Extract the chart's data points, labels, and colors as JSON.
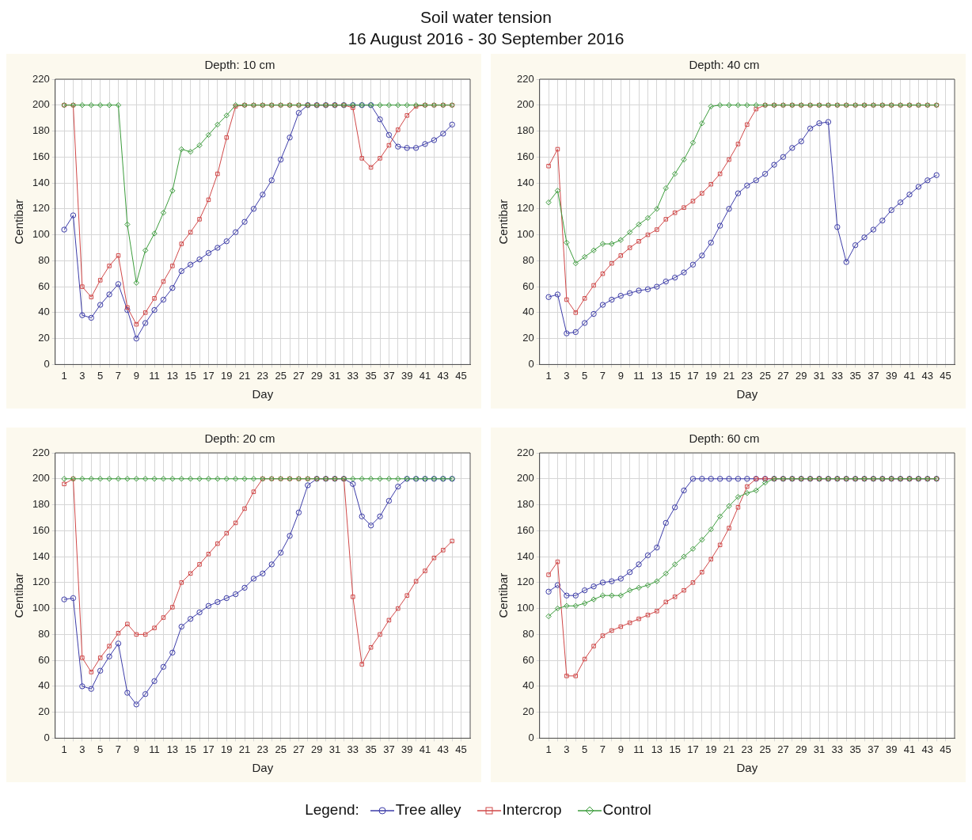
{
  "chart_data": [
    {
      "type": "other",
      "title": "Soil water tension",
      "subtitle": "16 August 2016 - 30 September 2016"
    },
    {
      "type": "line",
      "title": "Depth: 10 cm",
      "xlabel": "Day",
      "ylabel": "Centibar",
      "grid": true,
      "xlim": [
        0,
        46
      ],
      "ylim": [
        0,
        220
      ],
      "legend": "bottom",
      "legend_title": "Legend:",
      "xticks": [
        1,
        {
          "value": 2,
          "label": null
        },
        3,
        {
          "value": 4,
          "label": null
        },
        5,
        {
          "value": 6,
          "label": null
        },
        7,
        {
          "value": 8,
          "label": null
        },
        9,
        {
          "value": 10,
          "label": null
        },
        11,
        {
          "value": 12,
          "label": null
        },
        13,
        {
          "value": 14,
          "label": null
        },
        15,
        {
          "value": 16,
          "label": null
        },
        17,
        {
          "value": 18,
          "label": null
        },
        19,
        {
          "value": 20,
          "label": null
        },
        21,
        {
          "value": 22,
          "label": null
        },
        23,
        {
          "value": 24,
          "label": null
        },
        25,
        {
          "value": 26,
          "label": null
        },
        27,
        {
          "value": 28,
          "label": null
        },
        29,
        {
          "value": 30,
          "label": null
        },
        31,
        {
          "value": 32,
          "label": null
        },
        33,
        {
          "value": 34,
          "label": null
        },
        35,
        {
          "value": 36,
          "label": null
        },
        37,
        {
          "value": 38,
          "label": null
        },
        39,
        {
          "value": 40,
          "label": null
        },
        41,
        {
          "value": 42,
          "label": null
        },
        43,
        {
          "value": 44,
          "label": null
        },
        45
      ],
      "yticks": [
        0,
        20,
        40,
        60,
        80,
        100,
        120,
        140,
        160,
        180,
        200,
        220
      ],
      "x": [
        1,
        2,
        3,
        4,
        5,
        6,
        7,
        8,
        9,
        10,
        11,
        12,
        13,
        14,
        15,
        16,
        17,
        18,
        19,
        20,
        21,
        22,
        23,
        24,
        25,
        26,
        27,
        28,
        29,
        30,
        31,
        32,
        33,
        34,
        35,
        36,
        37,
        38,
        39,
        40,
        41,
        42,
        43,
        44
      ],
      "series": [
        {
          "name": "Tree alley",
          "color": "#3c3ca8",
          "marker": "circle",
          "values": [
            104,
            115,
            38,
            36,
            46,
            54,
            62,
            42,
            20,
            32,
            42,
            50,
            59,
            72,
            77,
            81,
            86,
            90,
            95,
            102,
            110,
            120,
            131,
            142,
            158,
            175,
            194,
            200,
            200,
            200,
            200,
            200,
            200,
            200,
            200,
            189,
            177,
            168,
            167,
            167,
            170,
            173,
            178,
            185
          ]
        },
        {
          "name": "Intercrop",
          "color": "#d04848",
          "marker": "square",
          "values": [
            200,
            200,
            60,
            52,
            65,
            76,
            84,
            44,
            31,
            40,
            51,
            64,
            76,
            93,
            102,
            112,
            127,
            147,
            175,
            199,
            200,
            200,
            200,
            200,
            200,
            200,
            200,
            200,
            200,
            200,
            200,
            200,
            198,
            159,
            152,
            159,
            169,
            181,
            192,
            199,
            200,
            200,
            200,
            200
          ]
        },
        {
          "name": "Control",
          "color": "#3c9c3c",
          "marker": "diamond",
          "values": [
            200,
            200,
            200,
            200,
            200,
            200,
            200,
            108,
            63,
            88,
            101,
            117,
            134,
            166,
            164,
            169,
            177,
            185,
            192,
            200,
            200,
            200,
            200,
            200,
            200,
            200,
            200,
            200,
            200,
            200,
            200,
            200,
            200,
            200,
            200,
            200,
            200,
            200,
            200,
            200,
            200,
            200,
            200,
            200
          ]
        }
      ]
    },
    {
      "type": "line",
      "title": "Depth: 40 cm",
      "xlabel": "Day",
      "ylabel": "Centibar",
      "grid": true,
      "xlim": [
        0,
        46
      ],
      "ylim": [
        0,
        220
      ],
      "xticks": [
        1,
        {
          "value": 2,
          "label": null
        },
        3,
        {
          "value": 4,
          "label": null
        },
        5,
        {
          "value": 6,
          "label": null
        },
        7,
        {
          "value": 8,
          "label": null
        },
        9,
        {
          "value": 10,
          "label": null
        },
        11,
        {
          "value": 12,
          "label": null
        },
        13,
        {
          "value": 14,
          "label": null
        },
        15,
        {
          "value": 16,
          "label": null
        },
        17,
        {
          "value": 18,
          "label": null
        },
        19,
        {
          "value": 20,
          "label": null
        },
        21,
        {
          "value": 22,
          "label": null
        },
        23,
        {
          "value": 24,
          "label": null
        },
        25,
        {
          "value": 26,
          "label": null
        },
        27,
        {
          "value": 28,
          "label": null
        },
        29,
        {
          "value": 30,
          "label": null
        },
        31,
        {
          "value": 32,
          "label": null
        },
        33,
        {
          "value": 34,
          "label": null
        },
        35,
        {
          "value": 36,
          "label": null
        },
        37,
        {
          "value": 38,
          "label": null
        },
        39,
        {
          "value": 40,
          "label": null
        },
        41,
        {
          "value": 42,
          "label": null
        },
        43,
        {
          "value": 44,
          "label": null
        },
        45
      ],
      "yticks": [
        0,
        20,
        40,
        60,
        80,
        100,
        120,
        140,
        160,
        180,
        200,
        220
      ],
      "x": [
        1,
        2,
        3,
        4,
        5,
        6,
        7,
        8,
        9,
        10,
        11,
        12,
        13,
        14,
        15,
        16,
        17,
        18,
        19,
        20,
        21,
        22,
        23,
        24,
        25,
        26,
        27,
        28,
        29,
        30,
        31,
        32,
        33,
        34,
        35,
        36,
        37,
        38,
        39,
        40,
        41,
        42,
        43,
        44
      ],
      "series": [
        {
          "color": "#3c3ca8",
          "marker": "circle",
          "values": [
            52,
            54,
            24,
            25,
            32,
            39,
            46,
            50,
            53,
            55,
            57,
            58,
            60,
            64,
            67,
            71,
            77,
            84,
            94,
            107,
            120,
            132,
            138,
            142,
            147,
            154,
            160,
            167,
            172,
            182,
            186,
            187,
            106,
            79,
            92,
            98,
            104,
            111,
            119,
            125,
            131,
            137,
            142,
            146
          ]
        },
        {
          "color": "#d04848",
          "marker": "square",
          "values": [
            153,
            166,
            50,
            40,
            51,
            61,
            70,
            78,
            84,
            90,
            95,
            100,
            104,
            112,
            117,
            121,
            126,
            132,
            139,
            147,
            158,
            170,
            185,
            197,
            200,
            200,
            200,
            200,
            200,
            200,
            200,
            200,
            200,
            200,
            200,
            200,
            200,
            200,
            200,
            200,
            200,
            200,
            200,
            200
          ]
        },
        {
          "color": "#3c9c3c",
          "marker": "diamond",
          "values": [
            125,
            134,
            94,
            78,
            83,
            88,
            93,
            93,
            96,
            102,
            108,
            113,
            120,
            136,
            147,
            158,
            171,
            186,
            199,
            200,
            200,
            200,
            200,
            200,
            200,
            200,
            200,
            200,
            200,
            200,
            200,
            200,
            200,
            200,
            200,
            200,
            200,
            200,
            200,
            200,
            200,
            200,
            200,
            200
          ]
        }
      ]
    },
    {
      "type": "line",
      "title": "Depth: 20 cm",
      "xlabel": "Day",
      "ylabel": "Centibar",
      "grid": true,
      "xlim": [
        0,
        46
      ],
      "ylim": [
        0,
        220
      ],
      "xticks": [
        1,
        {
          "value": 2,
          "label": null
        },
        3,
        {
          "value": 4,
          "label": null
        },
        5,
        {
          "value": 6,
          "label": null
        },
        7,
        {
          "value": 8,
          "label": null
        },
        9,
        {
          "value": 10,
          "label": null
        },
        11,
        {
          "value": 12,
          "label": null
        },
        13,
        {
          "value": 14,
          "label": null
        },
        15,
        {
          "value": 16,
          "label": null
        },
        17,
        {
          "value": 18,
          "label": null
        },
        19,
        {
          "value": 20,
          "label": null
        },
        21,
        {
          "value": 22,
          "label": null
        },
        23,
        {
          "value": 24,
          "label": null
        },
        25,
        {
          "value": 26,
          "label": null
        },
        27,
        {
          "value": 28,
          "label": null
        },
        29,
        {
          "value": 30,
          "label": null
        },
        31,
        {
          "value": 32,
          "label": null
        },
        33,
        {
          "value": 34,
          "label": null
        },
        35,
        {
          "value": 36,
          "label": null
        },
        37,
        {
          "value": 38,
          "label": null
        },
        39,
        {
          "value": 40,
          "label": null
        },
        41,
        {
          "value": 42,
          "label": null
        },
        43,
        {
          "value": 44,
          "label": null
        },
        45
      ],
      "yticks": [
        0,
        20,
        40,
        60,
        80,
        100,
        120,
        140,
        160,
        180,
        200,
        220
      ],
      "x": [
        1,
        2,
        3,
        4,
        5,
        6,
        7,
        8,
        9,
        10,
        11,
        12,
        13,
        14,
        15,
        16,
        17,
        18,
        19,
        20,
        21,
        22,
        23,
        24,
        25,
        26,
        27,
        28,
        29,
        30,
        31,
        32,
        33,
        34,
        35,
        36,
        37,
        38,
        39,
        40,
        41,
        42,
        43,
        44
      ],
      "series": [
        {
          "color": "#3c3ca8",
          "marker": "circle",
          "values": [
            107,
            108,
            40,
            38,
            52,
            63,
            73,
            35,
            26,
            34,
            44,
            55,
            66,
            86,
            92,
            97,
            102,
            105,
            108,
            111,
            116,
            123,
            127,
            134,
            143,
            156,
            174,
            195,
            200,
            200,
            200,
            200,
            196,
            171,
            164,
            171,
            183,
            194,
            200,
            200,
            200,
            200,
            200,
            200
          ]
        },
        {
          "color": "#d04848",
          "marker": "square",
          "values": [
            196,
            200,
            62,
            51,
            62,
            71,
            81,
            88,
            80,
            80,
            85,
            93,
            101,
            120,
            127,
            134,
            142,
            150,
            158,
            166,
            177,
            190,
            200,
            200,
            200,
            200,
            200,
            200,
            200,
            200,
            200,
            200,
            109,
            57,
            70,
            80,
            91,
            100,
            110,
            121,
            129,
            139,
            145,
            152
          ]
        },
        {
          "color": "#3c9c3c",
          "marker": "diamond",
          "values": [
            200,
            200,
            200,
            200,
            200,
            200,
            200,
            200,
            200,
            200,
            200,
            200,
            200,
            200,
            200,
            200,
            200,
            200,
            200,
            200,
            200,
            200,
            200,
            200,
            200,
            200,
            200,
            200,
            200,
            200,
            200,
            200,
            200,
            200,
            200,
            200,
            200,
            200,
            200,
            200,
            200,
            200,
            200,
            200
          ]
        }
      ]
    },
    {
      "type": "line",
      "title": "Depth: 60 cm",
      "xlabel": "Day",
      "ylabel": "Centibar",
      "grid": true,
      "xlim": [
        0,
        46
      ],
      "ylim": [
        0,
        220
      ],
      "xticks": [
        1,
        {
          "value": 2,
          "label": null
        },
        3,
        {
          "value": 4,
          "label": null
        },
        5,
        {
          "value": 6,
          "label": null
        },
        7,
        {
          "value": 8,
          "label": null
        },
        9,
        {
          "value": 10,
          "label": null
        },
        11,
        {
          "value": 12,
          "label": null
        },
        13,
        {
          "value": 14,
          "label": null
        },
        15,
        {
          "value": 16,
          "label": null
        },
        17,
        {
          "value": 18,
          "label": null
        },
        19,
        {
          "value": 20,
          "label": null
        },
        21,
        {
          "value": 22,
          "label": null
        },
        23,
        {
          "value": 24,
          "label": null
        },
        25,
        {
          "value": 26,
          "label": null
        },
        27,
        {
          "value": 28,
          "label": null
        },
        29,
        {
          "value": 30,
          "label": null
        },
        31,
        {
          "value": 32,
          "label": null
        },
        33,
        {
          "value": 34,
          "label": null
        },
        35,
        {
          "value": 36,
          "label": null
        },
        37,
        {
          "value": 38,
          "label": null
        },
        39,
        {
          "value": 40,
          "label": null
        },
        41,
        {
          "value": 42,
          "label": null
        },
        43,
        {
          "value": 44,
          "label": null
        },
        45
      ],
      "yticks": [
        0,
        20,
        40,
        60,
        80,
        100,
        120,
        140,
        160,
        180,
        200,
        220
      ],
      "x": [
        1,
        2,
        3,
        4,
        5,
        6,
        7,
        8,
        9,
        10,
        11,
        12,
        13,
        14,
        15,
        16,
        17,
        18,
        19,
        20,
        21,
        22,
        23,
        24,
        25,
        26,
        27,
        28,
        29,
        30,
        31,
        32,
        33,
        34,
        35,
        36,
        37,
        38,
        39,
        40,
        41,
        42,
        43,
        44
      ],
      "series": [
        {
          "color": "#3c3ca8",
          "marker": "circle",
          "values": [
            113,
            118,
            110,
            110,
            114,
            117,
            120,
            121,
            123,
            128,
            134,
            141,
            147,
            166,
            178,
            191,
            200,
            200,
            200,
            200,
            200,
            200,
            200,
            200,
            200,
            200,
            200,
            200,
            200,
            200,
            200,
            200,
            200,
            200,
            200,
            200,
            200,
            200,
            200,
            200,
            200,
            200,
            200,
            200
          ]
        },
        {
          "color": "#d04848",
          "marker": "square",
          "values": [
            126,
            136,
            48,
            48,
            61,
            71,
            79,
            83,
            86,
            89,
            92,
            95,
            98,
            105,
            109,
            114,
            120,
            128,
            138,
            149,
            162,
            178,
            194,
            200,
            200,
            200,
            200,
            200,
            200,
            200,
            200,
            200,
            200,
            200,
            200,
            200,
            200,
            200,
            200,
            200,
            200,
            200,
            200,
            200
          ]
        },
        {
          "color": "#3c9c3c",
          "marker": "diamond",
          "values": [
            94,
            100,
            102,
            102,
            104,
            107,
            110,
            110,
            110,
            114,
            116,
            118,
            121,
            127,
            134,
            140,
            146,
            153,
            161,
            171,
            179,
            186,
            189,
            191,
            197,
            200,
            200,
            200,
            200,
            200,
            200,
            200,
            200,
            200,
            200,
            200,
            200,
            200,
            200,
            200,
            200,
            200,
            200,
            200
          ]
        }
      ]
    }
  ]
}
